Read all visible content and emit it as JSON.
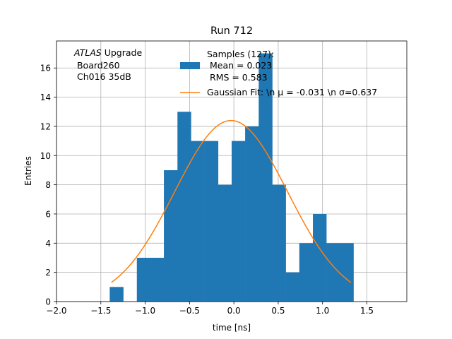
{
  "chart_data": {
    "type": "bar",
    "title": "Run 712",
    "xlabel": "time [ns]",
    "ylabel": "Entries",
    "xlim": [
      -2.0,
      1.95
    ],
    "ylim": [
      0,
      17.85
    ],
    "grid": true,
    "xticks": [
      -2.0,
      -1.5,
      -1.0,
      -0.5,
      0.0,
      0.5,
      1.0,
      1.5
    ],
    "xtick_labels": [
      "−2.0",
      "−1.5",
      "−1.0",
      "−0.5",
      "0.0",
      "0.5",
      "1.0",
      "1.5"
    ],
    "yticks": [
      0,
      2,
      4,
      6,
      8,
      10,
      12,
      14,
      16
    ],
    "yticks_labels": [
      "0",
      "2",
      "4",
      "6",
      "8",
      "10",
      "12",
      "14",
      "16"
    ],
    "bins": {
      "edges": [
        -1.4,
        -1.247,
        -1.094,
        -0.942,
        -0.789,
        -0.636,
        -0.484,
        -0.331,
        -0.178,
        -0.025,
        0.127,
        0.28,
        0.433,
        0.585,
        0.738,
        0.891,
        1.043,
        1.196,
        1.349
      ],
      "counts": [
        1,
        0,
        3,
        3,
        9,
        13,
        11,
        11,
        8,
        11,
        12,
        17,
        8,
        2,
        4,
        6,
        4,
        4
      ]
    },
    "series": [
      {
        "name": "Samples (127):\n Mean = 0.023\n RMS = 0.583",
        "type": "histogram",
        "color": "#1f77b4"
      },
      {
        "name": "Gaussian Fit: \\n $\\mu$ = -0.031 \\n $\\sigma$=0.637",
        "type": "line",
        "color": "#ff7f0e",
        "amplitude": 12.4,
        "mu": -0.031,
        "sigma": 0.637,
        "x_range": [
          -1.38,
          1.32
        ]
      }
    ],
    "legend": {
      "placement": "top-right",
      "entries": [
        {
          "lines": [
            "Samples (127):",
            " Mean = 0.023",
            " RMS = 0.583"
          ]
        },
        {
          "lines": [
            "Gaussian Fit: \\n μ = -0.031 \\n σ=0.637"
          ]
        }
      ]
    },
    "annotation": {
      "italic": "ATLAS",
      "rest": " Upgrade",
      "lines": [
        " Board260",
        " Ch016 35dB"
      ]
    }
  }
}
